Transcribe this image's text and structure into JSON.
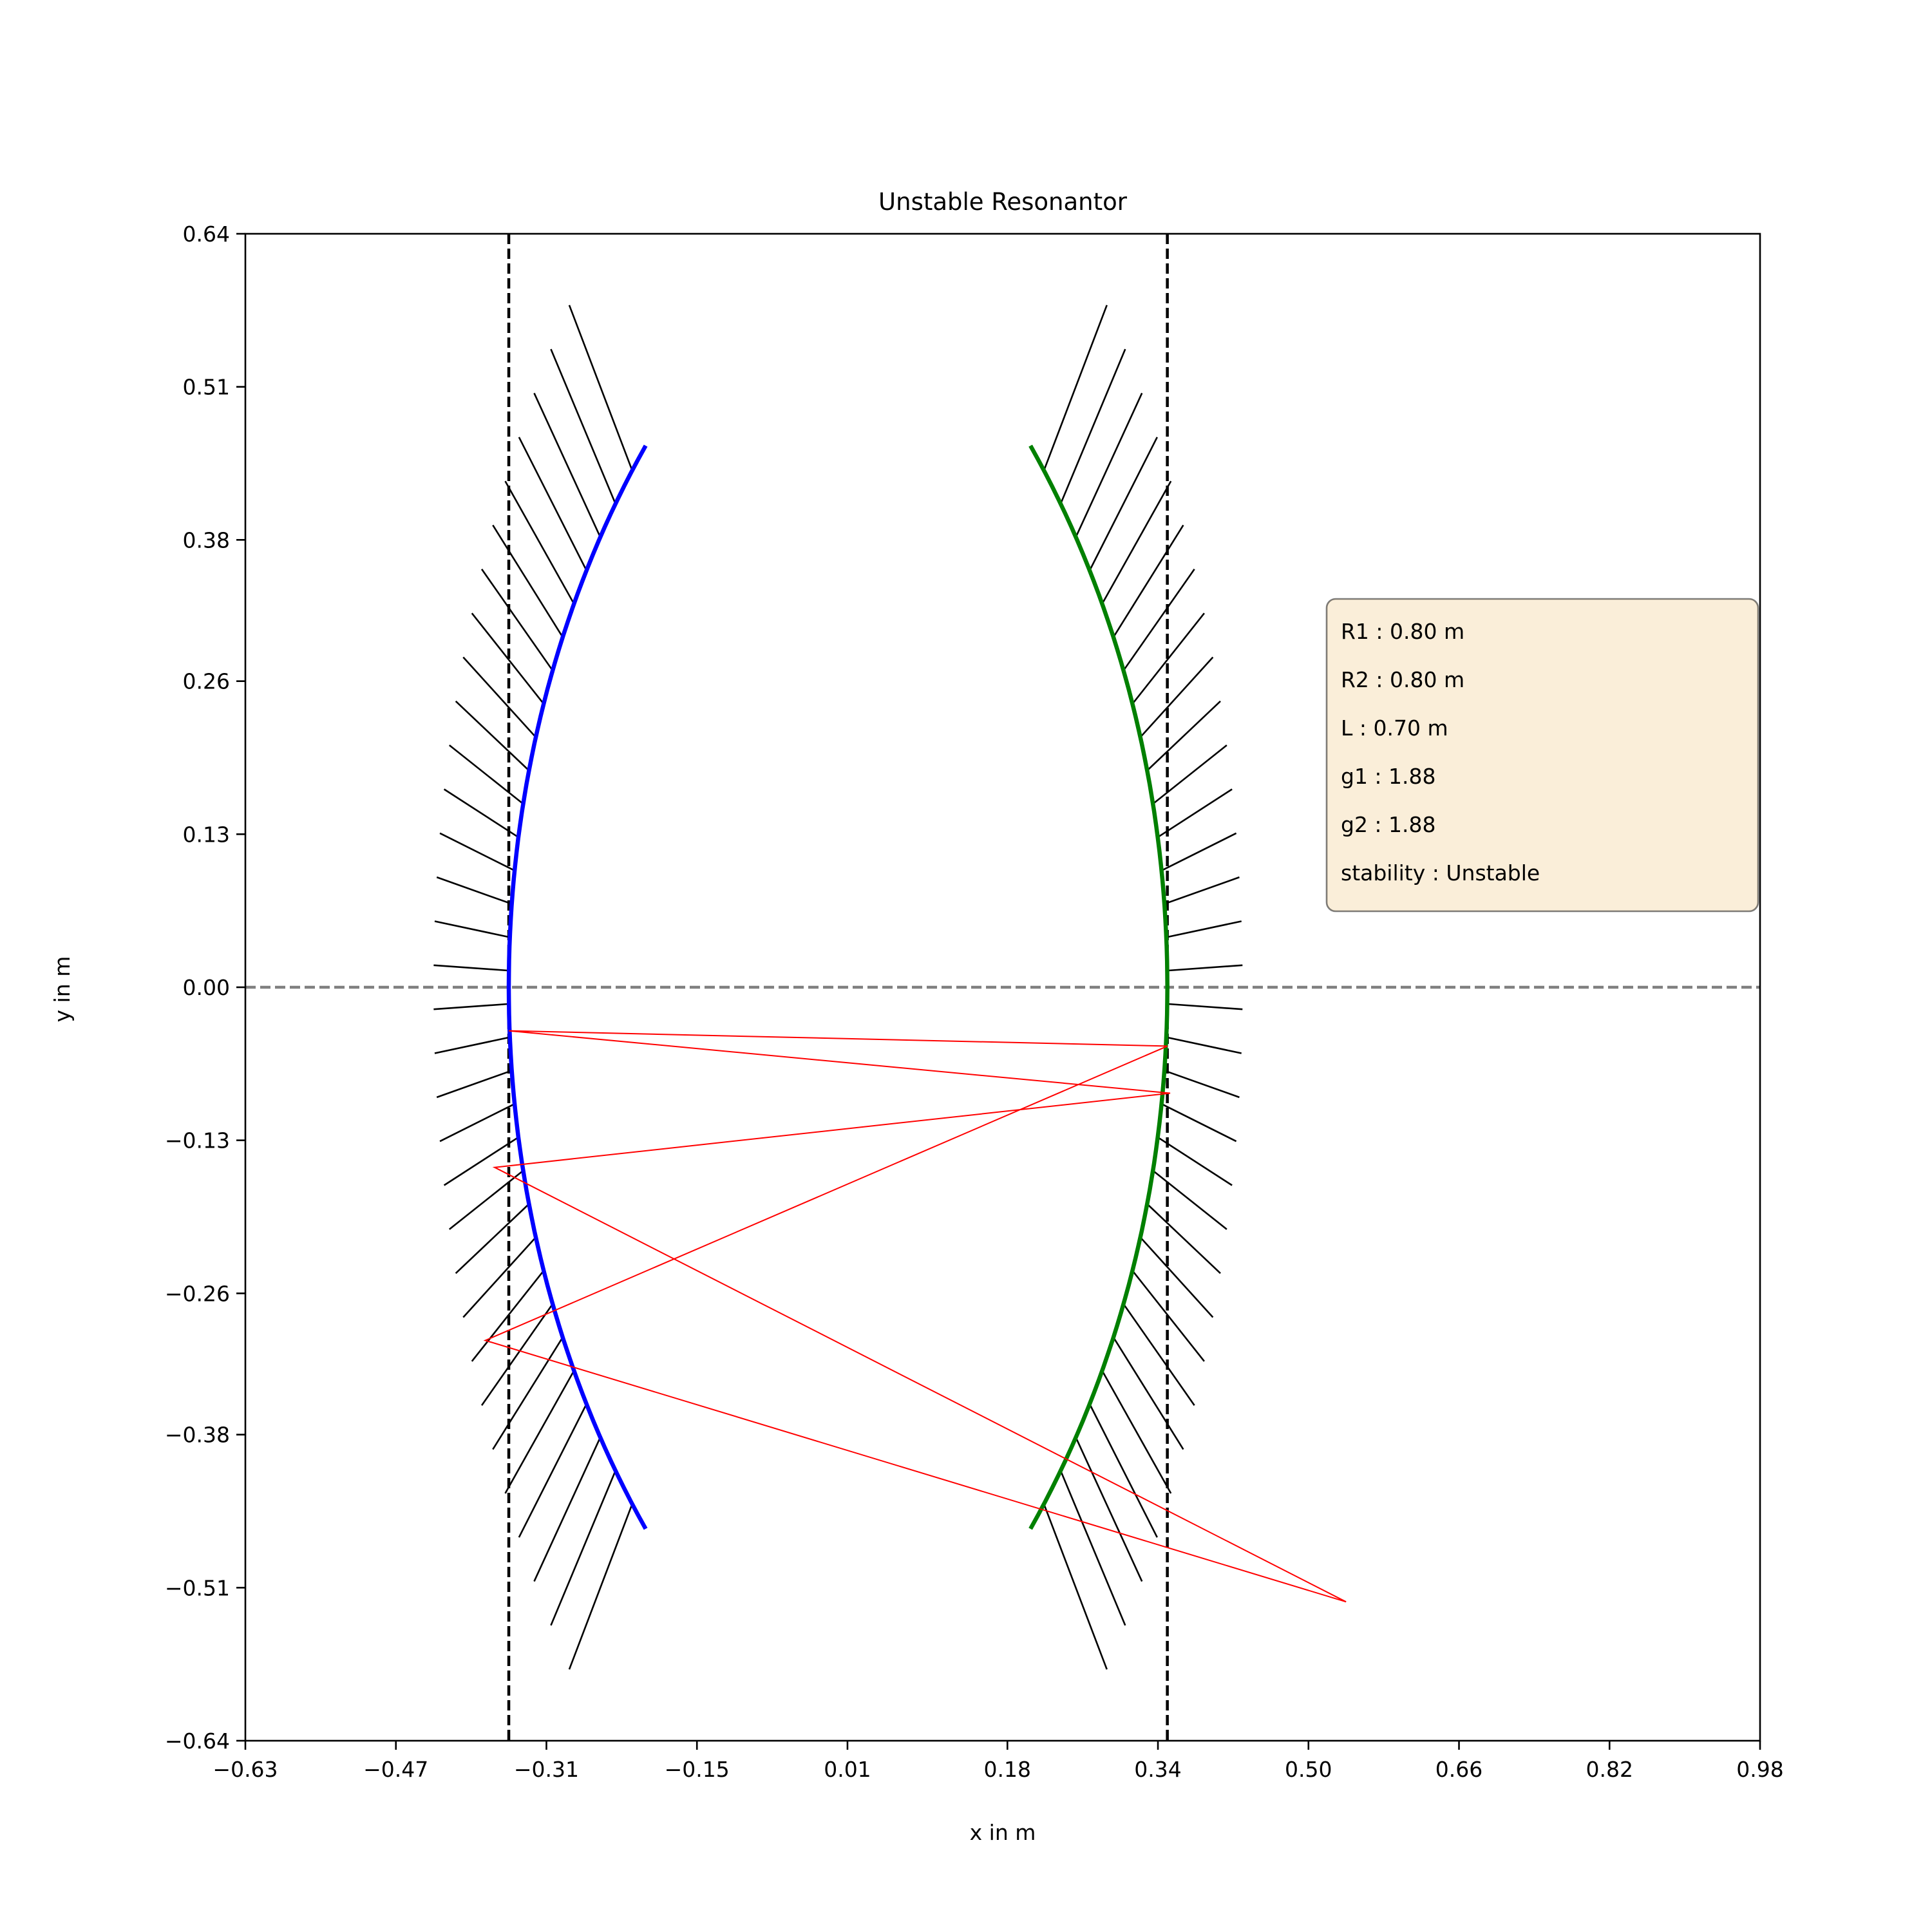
{
  "chart_data": {
    "type": "line",
    "title": "Unstable Resonantor",
    "xlabel": "x in m",
    "ylabel": "y in m",
    "xlim": [
      -0.63,
      0.98
    ],
    "ylim": [
      -0.64,
      0.64
    ],
    "xticks": [
      -0.63,
      -0.47,
      -0.31,
      -0.15,
      0.01,
      0.18,
      0.34,
      0.5,
      0.66,
      0.82,
      0.98
    ],
    "xtick_labels": [
      "−0.63",
      "−0.47",
      "−0.31",
      "−0.15",
      "0.01",
      "0.18",
      "0.34",
      "0.50",
      "0.66",
      "0.82",
      "0.98"
    ],
    "yticks": [
      0.64,
      0.51,
      0.38,
      0.26,
      0.13,
      0.0,
      -0.13,
      -0.26,
      -0.38,
      -0.51,
      -0.64
    ],
    "ytick_labels": [
      "0.64",
      "0.51",
      "0.38",
      "0.26",
      "0.13",
      "0.00",
      "−0.13",
      "−0.26",
      "−0.38",
      "−0.51",
      "−0.64"
    ],
    "grid": false,
    "mirrors": [
      {
        "vertex_x": -0.35,
        "center_x": 0.45,
        "radius": 0.8,
        "y_extent": 0.46,
        "color": "#0000ff",
        "hatch_side": "left"
      },
      {
        "vertex_x": 0.35,
        "center_x": -0.45,
        "radius": 0.8,
        "y_extent": 0.46,
        "color": "#008000",
        "hatch_side": "right"
      }
    ],
    "reference_lines": [
      {
        "orientation": "vertical",
        "x": -0.35,
        "color": "#000000",
        "style": "dashed"
      },
      {
        "orientation": "vertical",
        "x": 0.35,
        "color": "#000000",
        "style": "dashed"
      },
      {
        "orientation": "horizontal",
        "y": 0.0,
        "color": "#808080",
        "style": "dashed"
      }
    ],
    "series": [
      {
        "type": "ray",
        "color": "#ff0000",
        "x": [
          0.54,
          -0.365,
          0.353,
          -0.35,
          0.35,
          -0.375,
          0.54
        ],
        "y": [
          -0.522,
          -0.153,
          -0.09,
          -0.037,
          -0.05,
          -0.3,
          -0.522
        ]
      }
    ],
    "info_box": {
      "lines": [
        "R1 : 0.80 m",
        "R2 : 0.80 m",
        "L : 0.70 m",
        "g1 : 1.88",
        "g2 : 1.88",
        "stability : Unstable"
      ],
      "facecolor": "#f5deb3",
      "placement": "upper-right"
    }
  }
}
